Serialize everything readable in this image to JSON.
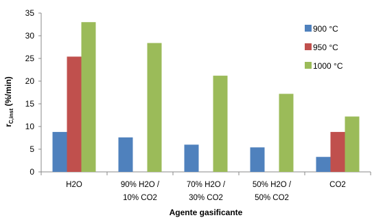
{
  "chart_data": {
    "type": "bar",
    "title": "",
    "xlabel": "Agente gasificante",
    "ylabel": "r",
    "ylabel_sub": "C,inst",
    "ylabel_unit": " (%/min)",
    "ylim": [
      0,
      35
    ],
    "yticks": [
      0,
      5,
      10,
      15,
      20,
      25,
      30,
      35
    ],
    "grid": false,
    "legend": "right",
    "categories": [
      [
        "H2O"
      ],
      [
        "90% H2O /",
        "10% CO2"
      ],
      [
        "70% H2O /",
        "30% CO2"
      ],
      [
        "50% H2O /",
        "50% CO2"
      ],
      [
        "CO2"
      ]
    ],
    "series": [
      {
        "name": "900 °C",
        "color": "#4f81bd",
        "values": [
          8.8,
          7.6,
          6.0,
          5.4,
          3.3
        ]
      },
      {
        "name": "950 °C",
        "color": "#c0504d",
        "values": [
          25.4,
          null,
          null,
          null,
          8.8
        ]
      },
      {
        "name": "1000 °C",
        "color": "#9bbb59",
        "values": [
          33.0,
          28.4,
          21.2,
          17.2,
          12.2
        ]
      }
    ]
  }
}
